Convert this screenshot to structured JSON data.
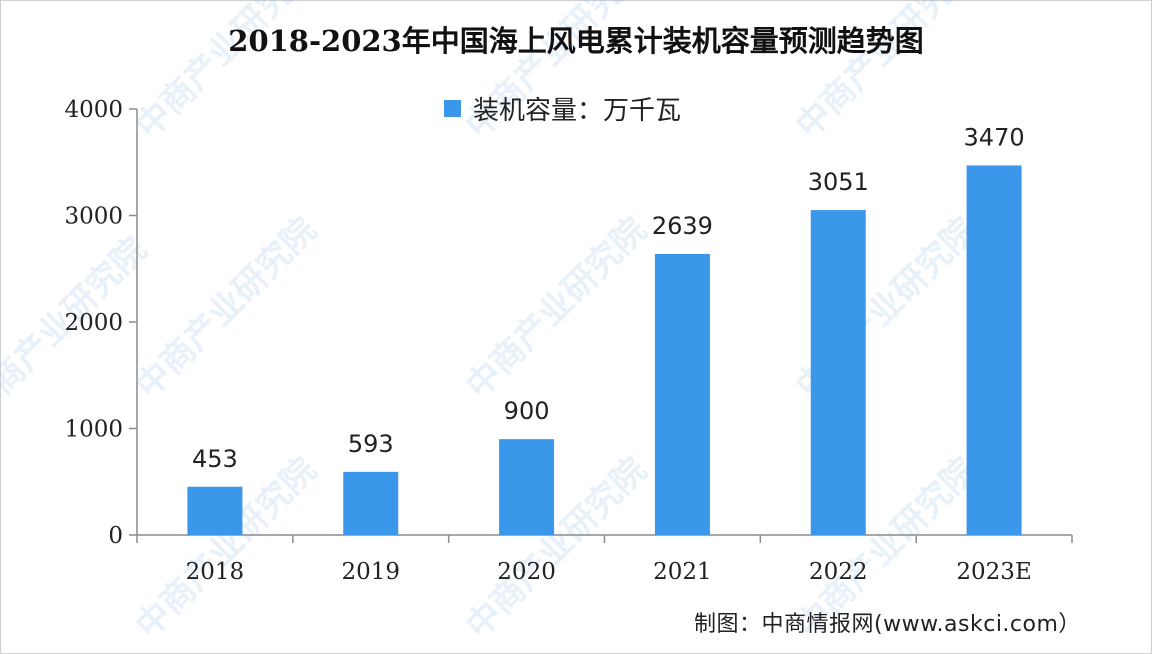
{
  "chart_data": {
    "type": "bar",
    "title": "2018-2023年中国海上风电累计装机容量预测趋势图",
    "categories": [
      "2018",
      "2019",
      "2020",
      "2021",
      "2022",
      "2023E"
    ],
    "series": [
      {
        "name": "装机容量：万千瓦",
        "values": [
          453,
          593,
          900,
          2639,
          3051,
          3470
        ]
      }
    ],
    "data_labels": [
      "453",
      "593",
      "900",
      "2639",
      "3051",
      "3470"
    ],
    "y_ticks": [
      0,
      1000,
      2000,
      3000,
      4000
    ],
    "ylim": [
      0,
      4000
    ],
    "legend_position": "top-center",
    "grid": false,
    "colors": {
      "bar": "#3a97ea"
    }
  },
  "source": "制图：中商情报网(www.askci.com）",
  "watermark": "中商产业研究院"
}
